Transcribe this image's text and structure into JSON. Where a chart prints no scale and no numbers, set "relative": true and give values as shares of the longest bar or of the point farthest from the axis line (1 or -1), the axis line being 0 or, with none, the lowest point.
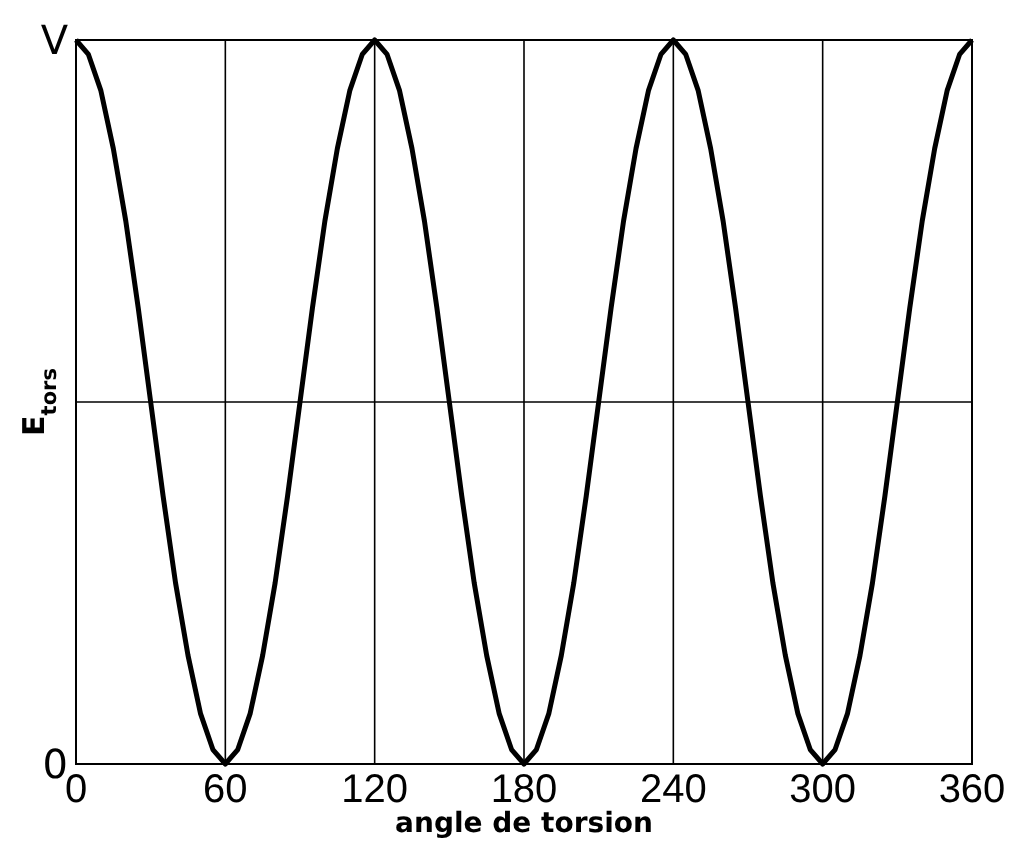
{
  "chart_data": {
    "type": "line",
    "xlabel": "angle de torsion",
    "ylabel": "E$_{tors}$",
    "x": [
      0,
      5,
      10,
      15,
      20,
      25,
      30,
      35,
      40,
      45,
      50,
      55,
      60,
      65,
      70,
      75,
      80,
      85,
      90,
      95,
      100,
      105,
      110,
      115,
      120,
      125,
      130,
      135,
      140,
      145,
      150,
      155,
      160,
      165,
      170,
      175,
      180,
      185,
      190,
      195,
      200,
      205,
      210,
      215,
      220,
      225,
      230,
      235,
      240,
      245,
      250,
      255,
      260,
      265,
      270,
      275,
      280,
      285,
      290,
      295,
      300,
      305,
      310,
      315,
      320,
      325,
      330,
      335,
      340,
      345,
      350,
      355,
      360
    ],
    "series": [
      {
        "color": "#000000",
        "values": [
          1,
          0.98,
          0.93,
          0.85,
          0.75,
          0.63,
          0.5,
          0.37,
          0.25,
          0.15,
          0.07,
          0.02,
          0,
          0.02,
          0.07,
          0.15,
          0.25,
          0.37,
          0.5,
          0.63,
          0.75,
          0.85,
          0.93,
          0.98,
          1,
          0.98,
          0.93,
          0.85,
          0.75,
          0.63,
          0.5,
          0.37,
          0.25,
          0.15,
          0.07,
          0.02,
          0,
          0.02,
          0.07,
          0.15,
          0.25,
          0.37,
          0.5,
          0.63,
          0.75,
          0.85,
          0.93,
          0.98,
          1,
          0.98,
          0.93,
          0.85,
          0.75,
          0.63,
          0.5,
          0.37,
          0.25,
          0.15,
          0.07,
          0.02,
          0,
          0.02,
          0.07,
          0.15,
          0.25,
          0.37,
          0.5,
          0.63,
          0.75,
          0.85,
          0.93,
          0.98,
          1
        ]
      }
    ],
    "xlim": [
      0,
      360
    ],
    "xticks": [
      0,
      60,
      120,
      180,
      240,
      300,
      360
    ],
    "relative": true,
    "annotations": [
      "0",
      "V"
    ],
    "ref_lines": [
      {
        "axis": "y",
        "value": 0.5,
        "color": "#000000"
      }
    ],
    "grid": "x",
    "line_style": "solid"
  }
}
